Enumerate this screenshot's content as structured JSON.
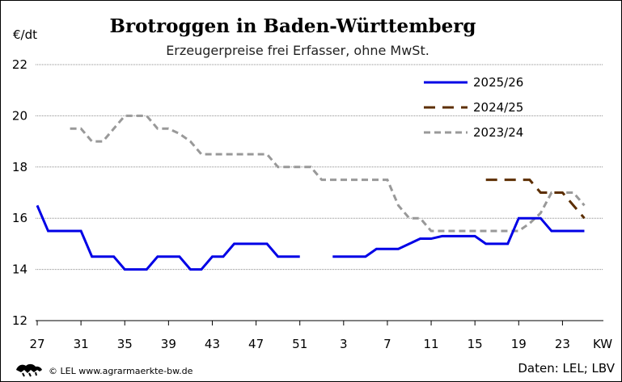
{
  "chart_data": {
    "type": "line",
    "title": "Brotroggen in Baden-Württemberg",
    "subtitle": "Erzeugerpreise frei Erfasser, ohne MwSt.",
    "ylabel": "€/dt",
    "xlabel": "KW",
    "ylim": [
      12,
      22
    ],
    "yticks": [
      12,
      14,
      16,
      18,
      20,
      22
    ],
    "grid": true,
    "legend_position": "top-right",
    "x_weeks": [
      27,
      28,
      29,
      30,
      31,
      32,
      33,
      34,
      35,
      36,
      37,
      38,
      39,
      40,
      41,
      42,
      43,
      44,
      45,
      46,
      47,
      48,
      49,
      50,
      51,
      52,
      1,
      2,
      3,
      4,
      5,
      6,
      7,
      8,
      9,
      10,
      11,
      12,
      13,
      14,
      15,
      16,
      17,
      18,
      19,
      20,
      21,
      22,
      23,
      24,
      25,
      26
    ],
    "xtick_labels": [
      "27",
      "31",
      "35",
      "39",
      "43",
      "47",
      "51",
      "3",
      "7",
      "11",
      "15",
      "19",
      "23"
    ],
    "series": [
      {
        "name": "2025/26",
        "color": "#0000e6",
        "style": "solid",
        "values": [
          16.5,
          15.5,
          15.5,
          15.5,
          15.5,
          14.5,
          14.5,
          14.5,
          14.0,
          14.0,
          14.0,
          14.5,
          14.5,
          14.5,
          14.0,
          14.0,
          14.5,
          14.5,
          15.0,
          15.0,
          15.0,
          15.0,
          14.5,
          14.5,
          14.5,
          null,
          null,
          14.5,
          14.5,
          14.5,
          14.5,
          14.8,
          14.8,
          14.8,
          15.0,
          15.2,
          15.2,
          15.3,
          15.3,
          15.3,
          15.3,
          15.0,
          15.0,
          15.0,
          16.0,
          16.0,
          16.0,
          15.5,
          15.5,
          15.5,
          15.5,
          null
        ]
      },
      {
        "name": "2024/25",
        "color": "#5c2e00",
        "style": "dashed",
        "values": [
          null,
          null,
          null,
          null,
          null,
          null,
          null,
          null,
          null,
          null,
          null,
          null,
          null,
          null,
          null,
          null,
          null,
          null,
          null,
          null,
          null,
          null,
          null,
          null,
          null,
          null,
          null,
          null,
          null,
          null,
          null,
          null,
          null,
          null,
          null,
          null,
          null,
          null,
          null,
          null,
          null,
          17.5,
          17.5,
          17.5,
          17.5,
          17.5,
          17.0,
          17.0,
          17.0,
          16.5,
          16.0,
          null
        ]
      },
      {
        "name": "2023/24",
        "color": "#999999",
        "style": "dotted",
        "values": [
          null,
          null,
          null,
          19.5,
          19.5,
          19.0,
          19.0,
          19.5,
          20.0,
          20.0,
          20.0,
          19.5,
          19.5,
          19.3,
          19.0,
          18.5,
          18.5,
          18.5,
          18.5,
          18.5,
          18.5,
          18.5,
          18.0,
          18.0,
          18.0,
          18.0,
          17.5,
          17.5,
          17.5,
          17.5,
          17.5,
          17.5,
          17.5,
          16.5,
          16.0,
          16.0,
          15.5,
          15.5,
          15.5,
          15.5,
          15.5,
          15.5,
          15.5,
          15.5,
          15.5,
          15.8,
          16.2,
          17.0,
          17.0,
          17.0,
          16.5,
          null
        ]
      }
    ]
  },
  "footer": {
    "copyright": "© LEL www.agrarmaerkte-bw.de",
    "source": "Daten: LEL; LBV",
    "logo_icon": "lion-icon"
  }
}
